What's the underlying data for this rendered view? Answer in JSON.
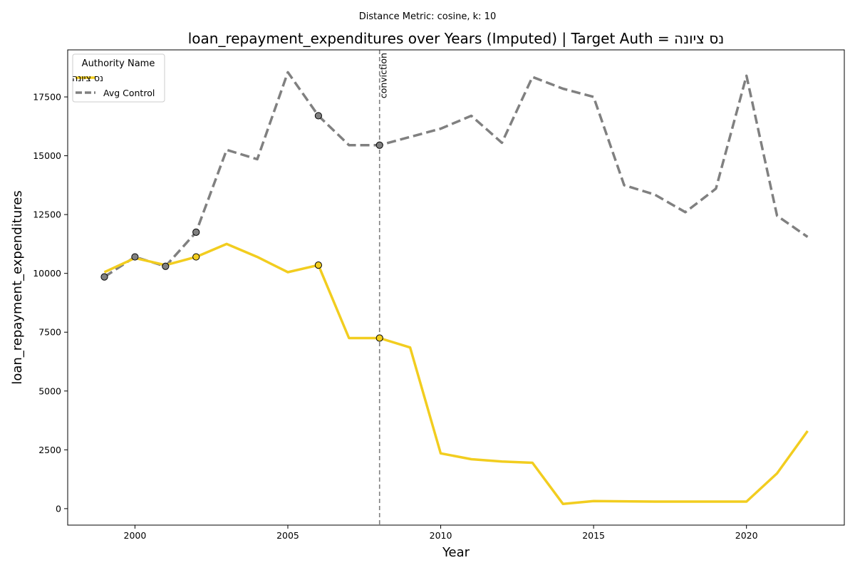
{
  "figure": {
    "suptitle": "Distance Metric: cosine, k: 10"
  },
  "chart_data": {
    "type": "line",
    "title": "loan_repayment_expenditures over Years (Imputed) | Target Auth = נס ציונה",
    "xlabel": "Year",
    "ylabel": "loan_repayment_expenditures",
    "xlim": [
      1997.8,
      2023.2
    ],
    "ylim": [
      -700,
      19500
    ],
    "xticks": [
      2000,
      2005,
      2010,
      2015,
      2020
    ],
    "yticks": [
      0,
      2500,
      5000,
      7500,
      10000,
      12500,
      15000,
      17500
    ],
    "grid": false,
    "legend": {
      "title": "Authority Name",
      "placement": "top-left"
    },
    "x": [
      1999,
      2000,
      2001,
      2002,
      2003,
      2004,
      2005,
      2006,
      2007,
      2008,
      2009,
      2010,
      2011,
      2012,
      2013,
      2014,
      2015,
      2016,
      2017,
      2018,
      2019,
      2020,
      2021,
      2022
    ],
    "series": [
      {
        "name": "נס ציונה",
        "color": "#f2cd1f",
        "style": "solid",
        "values": [
          10050,
          10650,
          10350,
          10700,
          11250,
          10700,
          10050,
          10350,
          7250,
          7250,
          6850,
          2350,
          2100,
          2000,
          1950,
          200,
          320,
          310,
          300,
          300,
          300,
          300,
          1500,
          3300
        ],
        "marker_x": [
          2002,
          2006,
          2008
        ]
      },
      {
        "name": "Avg Control",
        "color": "#808080",
        "style": "dashed",
        "values": [
          9850,
          10700,
          10300,
          11750,
          15250,
          14850,
          18550,
          16700,
          15450,
          15450,
          15800,
          16150,
          16700,
          15550,
          18350,
          17850,
          17500,
          13750,
          13350,
          12600,
          13600,
          18400,
          12450,
          11550
        ],
        "marker_x": [
          1999,
          2000,
          2001,
          2002,
          2006,
          2008
        ]
      }
    ],
    "annotations": [
      {
        "type": "vline",
        "x": 2008,
        "label": "conviction",
        "color": "#808080"
      }
    ]
  }
}
